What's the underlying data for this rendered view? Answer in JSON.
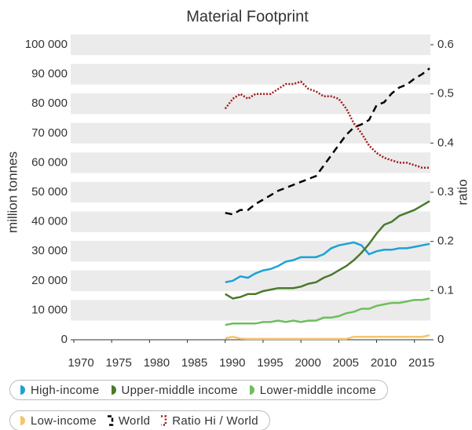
{
  "chart_data": {
    "type": "line",
    "title": "Material Footprint",
    "ylabel": "million tonnes",
    "y2label": "ratio",
    "x": [
      1990,
      1991,
      1992,
      1993,
      1994,
      1995,
      1996,
      1997,
      1998,
      1999,
      2000,
      2001,
      2002,
      2003,
      2004,
      2005,
      2006,
      2007,
      2008,
      2009,
      2010,
      2011,
      2012,
      2013,
      2014,
      2015,
      2016,
      2017
    ],
    "xlim": [
      1970,
      2017
    ],
    "xticks": [
      1970,
      1975,
      1980,
      1985,
      1990,
      1995,
      2000,
      2005,
      2010,
      2015
    ],
    "ylim": [
      0,
      100000
    ],
    "yticks": [
      0,
      {
        "value": 10000,
        "label": "10 000"
      },
      {
        "value": 20000,
        "label": "20 000"
      },
      {
        "value": 30000,
        "label": "30 000"
      },
      {
        "value": 40000,
        "label": "40 000"
      },
      {
        "value": 50000,
        "label": "50 000"
      },
      {
        "value": 60000,
        "label": "60 000"
      },
      {
        "value": 70000,
        "label": "70 000"
      },
      {
        "value": 80000,
        "label": "80 000"
      },
      {
        "value": 90000,
        "label": "90 000"
      },
      {
        "value": 100000,
        "label": "100 000"
      }
    ],
    "y2lim": [
      0,
      0.6
    ],
    "y2ticks": [
      0,
      0.1,
      0.2,
      0.3,
      0.4,
      0.5,
      0.6
    ],
    "grid": true,
    "legend": "bottom",
    "series": [
      {
        "name": "High-income",
        "color": "#1ba3d4",
        "line_style": "solid",
        "values": [
          19500,
          20000,
          21500,
          21000,
          22500,
          23500,
          24000,
          25000,
          26500,
          27000,
          28000,
          28000,
          28000,
          29000,
          31000,
          32000,
          32500,
          33000,
          32000,
          29000,
          30000,
          30500,
          30500,
          31000,
          31000,
          31500,
          32000,
          32500
        ]
      },
      {
        "name": "Upper-middle income",
        "color": "#4a7a2c",
        "line_style": "solid",
        "values": [
          15500,
          14000,
          14500,
          15500,
          15500,
          16500,
          17000,
          17500,
          17500,
          17500,
          18000,
          19000,
          19500,
          21000,
          22000,
          23500,
          25000,
          27000,
          29500,
          32500,
          36000,
          39000,
          40000,
          42000,
          43000,
          44000,
          45500,
          47000
        ]
      },
      {
        "name": "Lower-middle income",
        "color": "#6dbf5c",
        "line_style": "solid",
        "values": [
          5000,
          5500,
          5500,
          5500,
          5500,
          6000,
          6000,
          6500,
          6000,
          6500,
          6000,
          6500,
          6500,
          7500,
          7500,
          8000,
          9000,
          9500,
          10500,
          10500,
          11500,
          12000,
          12500,
          12500,
          13000,
          13500,
          13500,
          14000
        ]
      },
      {
        "name": "Low-income",
        "color": "#f5c46e",
        "line_style": "solid",
        "values": [
          500,
          1000,
          400,
          300,
          300,
          300,
          300,
          300,
          300,
          300,
          300,
          300,
          300,
          300,
          300,
          300,
          300,
          1000,
          1000,
          1000,
          1000,
          1000,
          1000,
          1000,
          1000,
          1000,
          1000,
          1500
        ]
      },
      {
        "name": "World",
        "color": "#000000",
        "line_style": "dashed",
        "values": [
          43000,
          42500,
          44000,
          44000,
          46000,
          47500,
          49000,
          50500,
          51500,
          52500,
          53500,
          54500,
          55500,
          59000,
          62500,
          66000,
          69500,
          72000,
          73000,
          74500,
          79500,
          80500,
          83500,
          85500,
          86500,
          88500,
          90000,
          92000
        ]
      },
      {
        "name": "Ratio Hi / World",
        "color": "#a11a1a",
        "line_style": "dotted",
        "axis": "y2",
        "values": [
          0.47,
          0.49,
          0.5,
          0.49,
          0.5,
          0.5,
          0.5,
          0.51,
          0.52,
          0.52,
          0.525,
          0.51,
          0.505,
          0.495,
          0.495,
          0.49,
          0.47,
          0.44,
          0.42,
          0.395,
          0.38,
          0.37,
          0.365,
          0.36,
          0.36,
          0.355,
          0.35,
          0.35
        ]
      }
    ]
  }
}
